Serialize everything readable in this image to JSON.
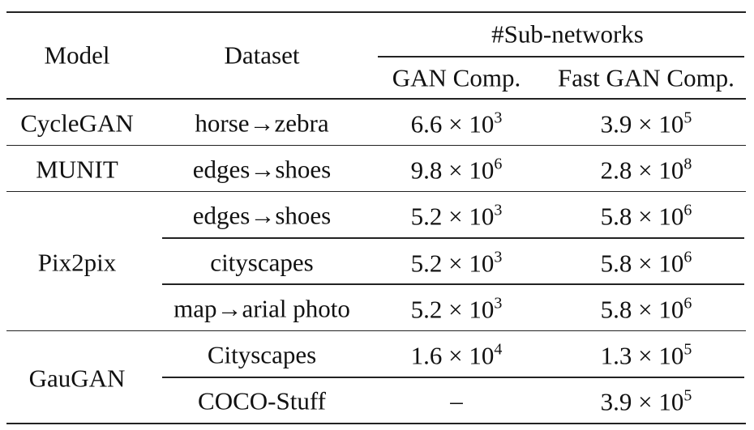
{
  "header": {
    "model": "Model",
    "dataset": "Dataset",
    "group": "#Sub-networks",
    "gan_comp": "GAN Comp.",
    "fast_gan_comp": "Fast GAN Comp."
  },
  "groups": [
    {
      "model": "CycleGAN",
      "rows": [
        {
          "dataset": "horse→zebra",
          "gan": {
            "coefficient": "6.6",
            "base": "× 10",
            "exponent": "3"
          },
          "fast": {
            "coefficient": "3.9",
            "base": "× 10",
            "exponent": "5"
          }
        }
      ]
    },
    {
      "model": "MUNIT",
      "rows": [
        {
          "dataset": "edges→shoes",
          "gan": {
            "coefficient": "9.8",
            "base": "× 10",
            "exponent": "6"
          },
          "fast": {
            "coefficient": "2.8",
            "base": "× 10",
            "exponent": "8"
          }
        }
      ]
    },
    {
      "model": "Pix2pix",
      "rows": [
        {
          "dataset": "edges→shoes",
          "gan": {
            "coefficient": "5.2",
            "base": "× 10",
            "exponent": "3"
          },
          "fast": {
            "coefficient": "5.8",
            "base": "× 10",
            "exponent": "6"
          }
        },
        {
          "dataset": "cityscapes",
          "gan": {
            "coefficient": "5.2",
            "base": "× 10",
            "exponent": "3"
          },
          "fast": {
            "coefficient": "5.8",
            "base": "× 10",
            "exponent": "6"
          }
        },
        {
          "dataset": "map→arial photo",
          "gan": {
            "coefficient": "5.2",
            "base": "× 10",
            "exponent": "3"
          },
          "fast": {
            "coefficient": "5.8",
            "base": "× 10",
            "exponent": "6"
          }
        }
      ]
    },
    {
      "model": "GauGAN",
      "rows": [
        {
          "dataset": "Cityscapes",
          "gan": {
            "coefficient": "1.6",
            "base": "× 10",
            "exponent": "4"
          },
          "fast": {
            "coefficient": "1.3",
            "base": "× 10",
            "exponent": "5"
          }
        },
        {
          "dataset": "COCO-Stuff",
          "gan": {
            "text": "–"
          },
          "fast": {
            "coefficient": "3.9",
            "base": "× 10",
            "exponent": "5"
          }
        }
      ]
    }
  ]
}
